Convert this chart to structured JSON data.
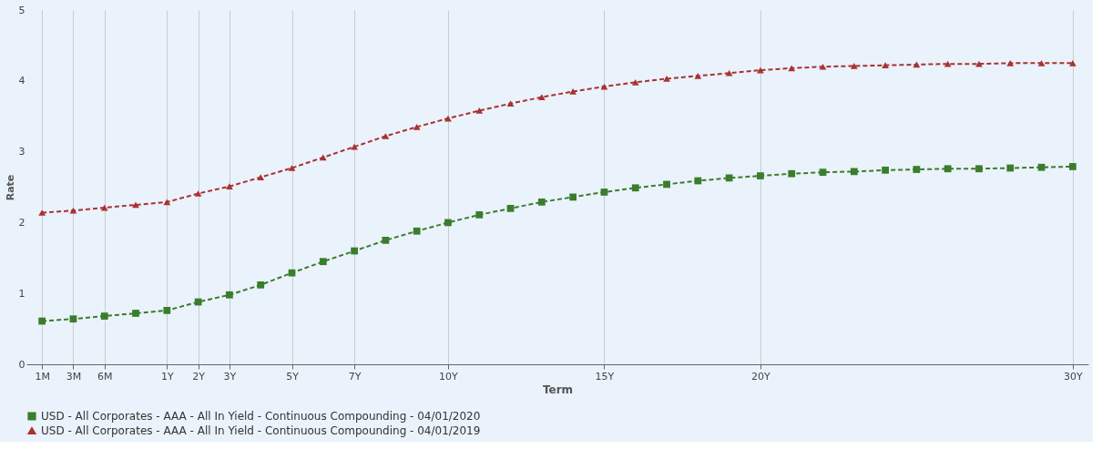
{
  "chart_data": {
    "type": "line",
    "xlabel": "Term",
    "ylabel": "Rate",
    "categories": [
      "1M",
      "3M",
      "6M",
      null,
      "1Y",
      "2Y",
      "3Y",
      null,
      "5Y",
      null,
      "7Y",
      null,
      null,
      "10Y",
      null,
      null,
      null,
      null,
      "15Y",
      null,
      null,
      null,
      null,
      "20Y",
      null,
      null,
      null,
      null,
      null,
      null,
      null,
      null,
      null,
      "30Y"
    ],
    "ylim": [
      0,
      5
    ],
    "yticks": [
      0,
      1,
      2,
      3,
      4,
      5
    ],
    "grid": "x",
    "legend": "bottom",
    "line_style": "dashed",
    "series": [
      {
        "name": "USD - All Corporates - AAA - All In Yield - Continuous Compounding - 04/01/2020",
        "color": "#3a7d2c",
        "marker": "square",
        "values": [
          0.61,
          0.64,
          0.68,
          0.72,
          0.76,
          0.88,
          0.98,
          1.12,
          1.29,
          1.45,
          1.6,
          1.75,
          1.88,
          2.0,
          2.11,
          2.2,
          2.29,
          2.36,
          2.43,
          2.49,
          2.54,
          2.59,
          2.63,
          2.66,
          2.69,
          2.71,
          2.72,
          2.74,
          2.75,
          2.76,
          2.76,
          2.77,
          2.78,
          2.79
        ]
      },
      {
        "name": "USD - All Corporates - AAA - All In Yield - Continuous Compounding - 04/01/2019",
        "color": "#a83232",
        "marker": "triangle",
        "values": [
          2.14,
          2.17,
          2.21,
          2.25,
          2.29,
          2.41,
          2.51,
          2.64,
          2.77,
          2.92,
          3.07,
          3.22,
          3.35,
          3.47,
          3.58,
          3.68,
          3.77,
          3.85,
          3.92,
          3.98,
          4.03,
          4.07,
          4.11,
          4.15,
          4.18,
          4.2,
          4.21,
          4.22,
          4.23,
          4.24,
          4.24,
          4.25,
          4.25,
          4.25
        ]
      }
    ]
  }
}
